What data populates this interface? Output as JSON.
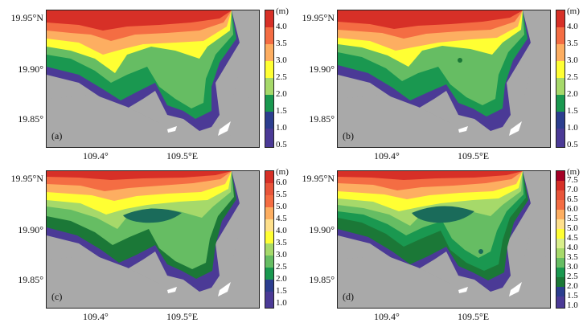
{
  "axes": {
    "y_ticks": [
      "19.95°N",
      "19.90°",
      "19.85°"
    ],
    "x_ticks": [
      "109.4°",
      "109.5°E"
    ]
  },
  "unit": "(m)",
  "panels": [
    {
      "label": "(a)",
      "cbar_ticks": [
        "4.0",
        "3.5",
        "3.0",
        "2.5",
        "2.0",
        "1.5",
        "1.0",
        "0.5"
      ]
    },
    {
      "label": "(b)",
      "cbar_ticks": [
        "4.0",
        "3.5",
        "3.0",
        "2.5",
        "2.0",
        "1.5",
        "1.0",
        "0.5"
      ]
    },
    {
      "label": "(c)",
      "cbar_ticks": [
        "6.0",
        "5.5",
        "5.0",
        "4.5",
        "4.0",
        "3.5",
        "3.0",
        "2.5",
        "2.0",
        "1.5",
        "1.0"
      ]
    },
    {
      "label": "(d)",
      "cbar_ticks": [
        "7.5",
        "7.0",
        "6.5",
        "6.0",
        "5.5",
        "5.0",
        "4.5",
        "4.0",
        "3.5",
        "3.0",
        "2.5",
        "2.0",
        "1.5",
        "1.0"
      ]
    }
  ],
  "colors": {
    "land": "#a9a9a9",
    "scale": [
      "#d73027",
      "#f46d43",
      "#fdae61",
      "#ffff33",
      "#a6d96a",
      "#66bd63",
      "#1a9850",
      "#1b7837",
      "#2c3e8f",
      "#4b3a96"
    ]
  }
}
